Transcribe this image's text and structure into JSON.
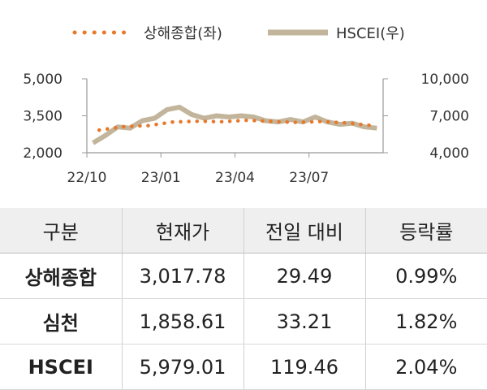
{
  "chart_data": {
    "type": "line",
    "x_ticks": [
      "22/10",
      "23/01",
      "23/04",
      "23/07"
    ],
    "x_range": [
      "2022-10",
      "2023-09"
    ],
    "series": [
      {
        "name": "상해종합(좌)",
        "axis": "left",
        "style": "dotted",
        "color": "#e8782a",
        "x": [
          "2022-10",
          "2022-11",
          "2022-12",
          "2023-01",
          "2023-02",
          "2023-03",
          "2023-04",
          "2023-05",
          "2023-06",
          "2023-07",
          "2023-08",
          "2023-09"
        ],
        "values": [
          2920,
          3060,
          3100,
          3250,
          3280,
          3260,
          3320,
          3270,
          3230,
          3270,
          3210,
          3110
        ]
      },
      {
        "name": "HSCEI(우)",
        "axis": "right",
        "style": "solid",
        "color": "#c2b59b",
        "x": [
          "2022-10",
          "2022-10",
          "2022-11",
          "2022-11",
          "2022-12",
          "2022-12",
          "2023-01",
          "2023-01",
          "2023-02",
          "2023-02",
          "2023-03",
          "2023-03",
          "2023-04",
          "2023-04",
          "2023-05",
          "2023-05",
          "2023-06",
          "2023-06",
          "2023-07",
          "2023-07",
          "2023-08",
          "2023-08",
          "2023-09",
          "2023-09"
        ],
        "values": [
          4800,
          5400,
          6100,
          6000,
          6600,
          6800,
          7500,
          7700,
          7100,
          6800,
          7000,
          6900,
          7000,
          6900,
          6600,
          6500,
          6700,
          6500,
          6900,
          6500,
          6300,
          6400,
          6100,
          6000
        ]
      }
    ],
    "y_left": {
      "ticks": [
        "5,000",
        "3,500",
        "2,000"
      ],
      "range": [
        2000,
        5000
      ]
    },
    "y_right": {
      "ticks": [
        "10,000",
        "7,000",
        "4,000"
      ],
      "range": [
        4000,
        10000
      ]
    },
    "legend_position": "top",
    "grid": false
  },
  "table": {
    "headers": [
      "구분",
      "현재가",
      "전일 대비",
      "등락률"
    ],
    "rows": [
      {
        "name": "상해종합",
        "price": "3,017.78",
        "change": "29.49",
        "pct": "0.99%"
      },
      {
        "name": "심천",
        "price": "1,858.61",
        "change": "33.21",
        "pct": "1.82%"
      },
      {
        "name": "HSCEI",
        "price": "5,979.01",
        "change": "119.46",
        "pct": "2.04%"
      }
    ]
  }
}
